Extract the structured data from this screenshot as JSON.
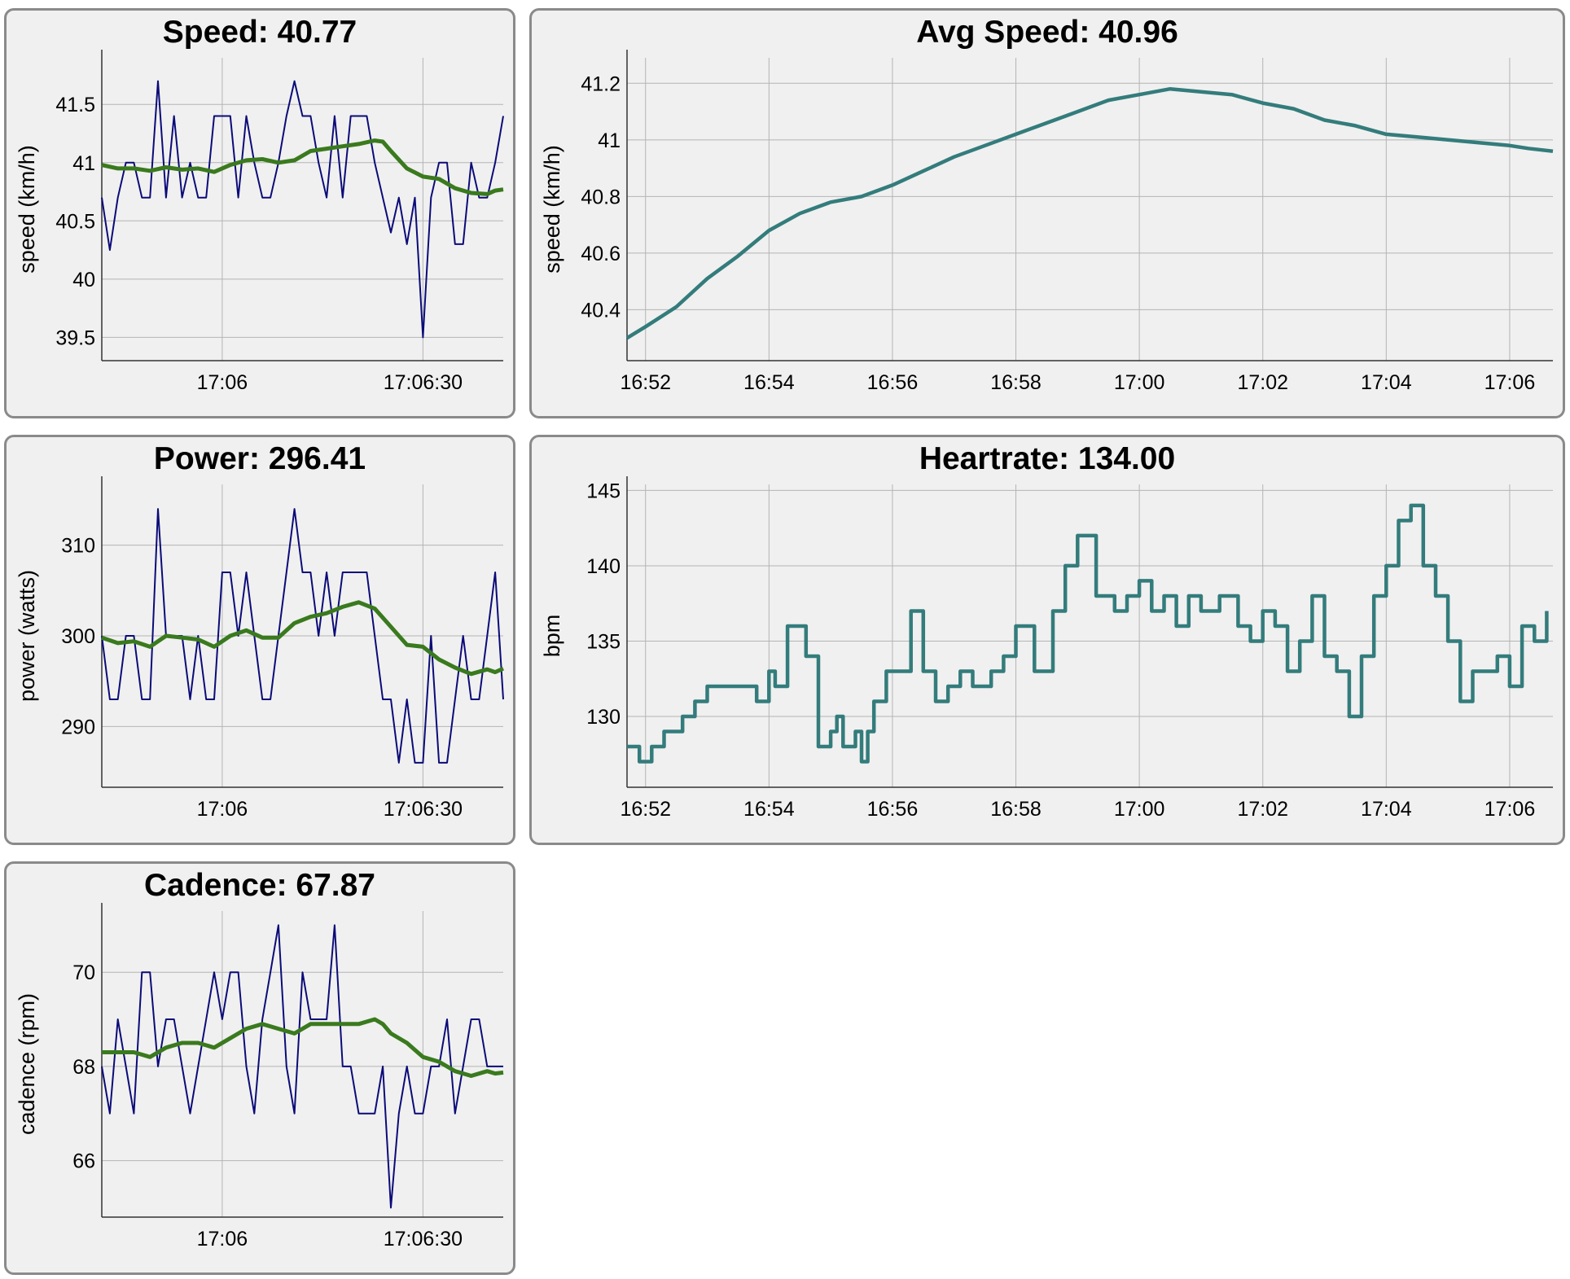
{
  "colors": {
    "panel_bg": "#f0f0f0",
    "panel_border": "#8a8a8a",
    "grid": "#b4b4b4",
    "axis": "#333333",
    "raw_line": "#0b0b78",
    "smooth_line": "#3a7a1e",
    "teal_line": "#347c7c"
  },
  "chart_data": [
    {
      "id": "speed",
      "type": "line",
      "title": "Speed: 40.77",
      "ylabel": "speed (km/h)",
      "xlabel": "",
      "ylim": [
        39.3,
        41.9
      ],
      "xlim": [
        0,
        50
      ],
      "yticks": [
        39.5,
        40,
        40.5,
        41,
        41.5
      ],
      "ytick_labels": [
        "39.5",
        "40",
        "40.5",
        "41",
        "41.5"
      ],
      "xticks": [
        15,
        40
      ],
      "xtick_labels": [
        "17:06",
        "17:06:30"
      ],
      "grid": true,
      "series": [
        {
          "style": "raw",
          "x": [
            0,
            1,
            2,
            3,
            4,
            5,
            6,
            7,
            8,
            9,
            10,
            11,
            12,
            13,
            14,
            15,
            16,
            17,
            18,
            19,
            20,
            21,
            22,
            23,
            24,
            25,
            26,
            27,
            28,
            29,
            30,
            31,
            32,
            33,
            34,
            35,
            36,
            37,
            38,
            39,
            40,
            41,
            42,
            43,
            44,
            45,
            46,
            47,
            48,
            49,
            50
          ],
          "values": [
            40.7,
            40.25,
            40.7,
            41.0,
            41.0,
            40.7,
            40.7,
            41.7,
            40.7,
            41.4,
            40.7,
            41.0,
            40.7,
            40.7,
            41.4,
            41.4,
            41.4,
            40.7,
            41.4,
            41.0,
            40.7,
            40.7,
            41.0,
            41.4,
            41.7,
            41.4,
            41.4,
            41.0,
            40.7,
            41.4,
            40.7,
            41.4,
            41.4,
            41.4,
            41.0,
            40.7,
            40.4,
            40.7,
            40.3,
            40.7,
            39.5,
            40.7,
            41.0,
            41.0,
            40.3,
            40.3,
            41.0,
            40.7,
            40.7,
            41.0,
            41.4
          ]
        },
        {
          "style": "smooth",
          "x": [
            0,
            2,
            4,
            6,
            8,
            10,
            12,
            14,
            16,
            18,
            20,
            22,
            24,
            26,
            28,
            30,
            32,
            34,
            35,
            36,
            38,
            40,
            42,
            44,
            46,
            48,
            49,
            50
          ],
          "values": [
            40.98,
            40.95,
            40.95,
            40.93,
            40.96,
            40.94,
            40.95,
            40.92,
            40.98,
            41.02,
            41.03,
            41.0,
            41.02,
            41.1,
            41.12,
            41.14,
            41.16,
            41.19,
            41.18,
            41.1,
            40.95,
            40.88,
            40.86,
            40.78,
            40.74,
            40.73,
            40.76,
            40.77
          ]
        }
      ]
    },
    {
      "id": "avg_speed",
      "type": "line",
      "title": "Avg Speed: 40.96",
      "ylabel": "speed (km/h)",
      "xlabel": "",
      "ylim": [
        40.22,
        41.29
      ],
      "xlim": [
        -0.3,
        14.7
      ],
      "yticks": [
        40.4,
        40.6,
        40.8,
        41.0,
        41.2
      ],
      "ytick_labels": [
        "40.4",
        "40.6",
        "40.8",
        "41",
        "41.2"
      ],
      "xticks": [
        0,
        2,
        4,
        6,
        8,
        10,
        12,
        14
      ],
      "xtick_labels": [
        "16:52",
        "16:54",
        "16:56",
        "16:58",
        "17:00",
        "17:02",
        "17:04",
        "17:06"
      ],
      "grid": true,
      "series": [
        {
          "style": "teal",
          "x": [
            -0.3,
            0,
            0.5,
            1,
            1.5,
            2,
            2.5,
            3,
            3.5,
            4,
            4.5,
            5,
            5.5,
            6,
            6.5,
            7,
            7.5,
            8,
            8.5,
            9,
            9.5,
            10,
            10.5,
            11,
            11.5,
            12,
            12.5,
            13,
            13.5,
            14,
            14.3,
            14.7
          ],
          "values": [
            40.3,
            40.34,
            40.41,
            40.51,
            40.59,
            40.68,
            40.74,
            40.78,
            40.8,
            40.84,
            40.89,
            40.94,
            40.98,
            41.02,
            41.06,
            41.1,
            41.14,
            41.16,
            41.18,
            41.17,
            41.16,
            41.13,
            41.11,
            41.07,
            41.05,
            41.02,
            41.01,
            41.0,
            40.99,
            40.98,
            40.97,
            40.96
          ]
        }
      ]
    },
    {
      "id": "power",
      "type": "line",
      "title": "Power: 296.41",
      "ylabel": "power (watts)",
      "xlabel": "",
      "ylim": [
        283.3,
        316.7
      ],
      "xlim": [
        0,
        50
      ],
      "yticks": [
        290,
        300,
        310
      ],
      "ytick_labels": [
        "290",
        "300",
        "310"
      ],
      "xticks": [
        15,
        40
      ],
      "xtick_labels": [
        "17:06",
        "17:06:30"
      ],
      "grid": true,
      "series": [
        {
          "style": "raw",
          "x": [
            0,
            1,
            2,
            3,
            4,
            5,
            6,
            7,
            8,
            9,
            10,
            11,
            12,
            13,
            14,
            15,
            16,
            17,
            18,
            19,
            20,
            21,
            22,
            23,
            24,
            25,
            26,
            27,
            28,
            29,
            30,
            31,
            32,
            33,
            34,
            35,
            36,
            37,
            38,
            39,
            40,
            41,
            42,
            43,
            44,
            45,
            46,
            47,
            48,
            49,
            50
          ],
          "values": [
            300,
            293,
            293,
            300,
            300,
            293,
            293,
            314,
            300,
            300,
            300,
            293,
            300,
            293,
            293,
            307,
            307,
            300,
            307,
            300,
            293,
            293,
            300,
            307,
            314,
            307,
            307,
            300,
            307,
            300,
            307,
            307,
            307,
            307,
            300,
            293,
            293,
            286,
            293,
            286,
            286,
            300,
            286,
            286,
            293,
            300,
            293,
            293,
            300,
            307,
            293
          ]
        },
        {
          "style": "smooth",
          "x": [
            0,
            2,
            4,
            6,
            8,
            10,
            12,
            14,
            16,
            18,
            20,
            22,
            24,
            26,
            28,
            30,
            32,
            34,
            35,
            36,
            38,
            40,
            42,
            44,
            46,
            48,
            49,
            50
          ],
          "values": [
            299.8,
            299.2,
            299.4,
            298.8,
            300.0,
            299.8,
            299.6,
            298.8,
            300.0,
            300.6,
            299.8,
            299.8,
            301.4,
            302.1,
            302.5,
            303.2,
            303.7,
            303.0,
            302.0,
            301.0,
            299.0,
            298.8,
            297.4,
            296.5,
            295.8,
            296.3,
            296.0,
            296.4
          ]
        }
      ]
    },
    {
      "id": "heartrate",
      "type": "line",
      "title": "Heartrate: 134.00",
      "ylabel": "bpm",
      "xlabel": "",
      "ylim": [
        125.3,
        145.4
      ],
      "xlim": [
        -0.3,
        14.7
      ],
      "yticks": [
        130,
        135,
        140,
        145
      ],
      "ytick_labels": [
        "130",
        "135",
        "140",
        "145"
      ],
      "xticks": [
        0,
        2,
        4,
        6,
        8,
        10,
        12,
        14
      ],
      "xtick_labels": [
        "16:52",
        "16:54",
        "16:56",
        "16:58",
        "17:00",
        "17:02",
        "17:04",
        "17:06"
      ],
      "grid": true,
      "series": [
        {
          "style": "teal",
          "step": true,
          "x": [
            -0.3,
            -0.1,
            0.1,
            0.3,
            0.6,
            0.8,
            1.0,
            1.2,
            1.5,
            1.8,
            2.0,
            2.1,
            2.3,
            2.6,
            2.8,
            3.0,
            3.1,
            3.2,
            3.4,
            3.5,
            3.6,
            3.7,
            3.9,
            4.0,
            4.3,
            4.5,
            4.7,
            4.9,
            5.1,
            5.3,
            5.5,
            5.6,
            5.8,
            6.0,
            6.3,
            6.6,
            6.8,
            7.0,
            7.3,
            7.6,
            7.8,
            8.0,
            8.2,
            8.4,
            8.6,
            8.8,
            9.0,
            9.1,
            9.3,
            9.6,
            9.8,
            10.0,
            10.2,
            10.4,
            10.6,
            10.8,
            11.0,
            11.2,
            11.4,
            11.6,
            11.8,
            12.0,
            12.2,
            12.4,
            12.6,
            12.8,
            13.0,
            13.2,
            13.4,
            13.6,
            13.8,
            14.0,
            14.2,
            14.4,
            14.6
          ],
          "values": [
            128,
            127,
            128,
            129,
            130,
            131,
            132,
            132,
            132,
            131,
            133,
            132,
            136,
            134,
            128,
            129,
            130,
            128,
            129,
            127,
            129,
            131,
            133,
            133,
            137,
            133,
            131,
            132,
            133,
            132,
            132,
            133,
            134,
            136,
            133,
            137,
            140,
            142,
            138,
            137,
            138,
            139,
            137,
            138,
            136,
            138,
            137,
            137,
            138,
            136,
            135,
            137,
            136,
            133,
            135,
            138,
            134,
            133,
            130,
            134,
            138,
            140,
            143,
            144,
            140,
            138,
            135,
            131,
            133,
            133,
            134,
            132,
            136,
            135,
            137
          ]
        }
      ]
    },
    {
      "id": "cadence",
      "type": "line",
      "title": "Cadence: 67.87",
      "ylabel": "cadence (rpm)",
      "xlabel": "",
      "ylim": [
        64.8,
        71.3
      ],
      "xlim": [
        0,
        50
      ],
      "yticks": [
        66,
        68,
        70
      ],
      "ytick_labels": [
        "66",
        "68",
        "70"
      ],
      "xticks": [
        15,
        40
      ],
      "xtick_labels": [
        "17:06",
        "17:06:30"
      ],
      "grid": true,
      "series": [
        {
          "style": "raw",
          "x": [
            0,
            1,
            2,
            3,
            4,
            5,
            6,
            7,
            8,
            9,
            10,
            11,
            12,
            13,
            14,
            15,
            16,
            17,
            18,
            19,
            20,
            21,
            22,
            23,
            24,
            25,
            26,
            27,
            28,
            29,
            30,
            31,
            32,
            33,
            34,
            35,
            36,
            37,
            38,
            39,
            40,
            41,
            42,
            43,
            44,
            45,
            46,
            47,
            48,
            49,
            50
          ],
          "values": [
            68,
            67,
            69,
            68,
            67,
            70,
            70,
            68,
            69,
            69,
            68,
            67,
            68,
            69,
            70,
            69,
            70,
            70,
            68,
            67,
            69,
            70,
            71,
            68,
            67,
            70,
            69,
            69,
            69,
            71,
            68,
            68,
            67,
            67,
            67,
            68,
            65,
            67,
            68,
            67,
            67,
            68,
            68,
            69,
            67,
            68,
            69,
            69,
            68,
            68,
            68
          ]
        },
        {
          "style": "smooth",
          "x": [
            0,
            2,
            4,
            6,
            8,
            10,
            12,
            14,
            16,
            18,
            20,
            22,
            24,
            26,
            28,
            30,
            32,
            34,
            35,
            36,
            38,
            40,
            42,
            44,
            46,
            48,
            49,
            50
          ],
          "values": [
            68.3,
            68.3,
            68.3,
            68.2,
            68.4,
            68.5,
            68.5,
            68.4,
            68.6,
            68.8,
            68.9,
            68.8,
            68.7,
            68.9,
            68.9,
            68.9,
            68.9,
            69.0,
            68.9,
            68.7,
            68.5,
            68.2,
            68.1,
            67.9,
            67.8,
            67.9,
            67.85,
            67.87
          ]
        }
      ]
    }
  ]
}
